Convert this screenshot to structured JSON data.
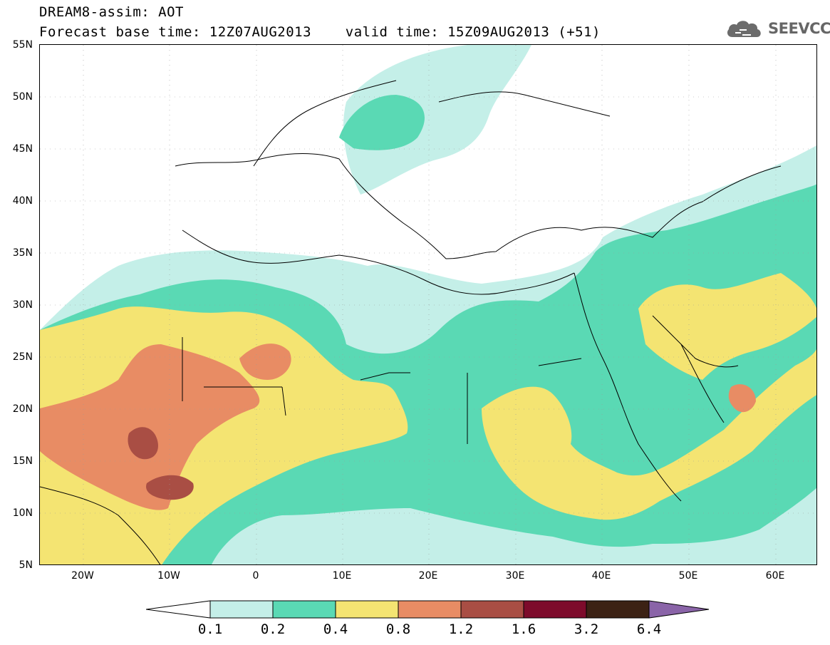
{
  "header": {
    "title_line1": "DREAM8-assim: AOT",
    "title_line2": "Forecast base time: 12Z07AUG2013    valid time: 15Z09AUG2013 (+51)"
  },
  "logo": {
    "text": "SEEVCCC",
    "icon": "cloud-icon"
  },
  "map": {
    "lat_labels": [
      "55N",
      "50N",
      "45N",
      "40N",
      "35N",
      "30N",
      "25N",
      "20N",
      "15N",
      "10N",
      "5N"
    ],
    "lon_labels": [
      "20W",
      "10W",
      "0",
      "10E",
      "20E",
      "30E",
      "40E",
      "50E",
      "60E"
    ],
    "colors": {
      "c01": "#c4efe8",
      "c02": "#5ad9b4",
      "c04": "#f4e472",
      "c08": "#e88c64",
      "c12": "#a94e44",
      "c16": "#7d0b2b",
      "c32": "#3c2214",
      "c64": "#8a64a8"
    }
  },
  "colorbar": {
    "labels": [
      "0.1",
      "0.2",
      "0.4",
      "0.8",
      "1.2",
      "1.6",
      "3.2",
      "6.4"
    ],
    "colors": [
      "#c4efe8",
      "#5ad9b4",
      "#f4e472",
      "#e88c64",
      "#a94e44",
      "#7d0b2b",
      "#3c2214"
    ],
    "low_color": "#ffffff",
    "high_color": "#8a64a8"
  }
}
